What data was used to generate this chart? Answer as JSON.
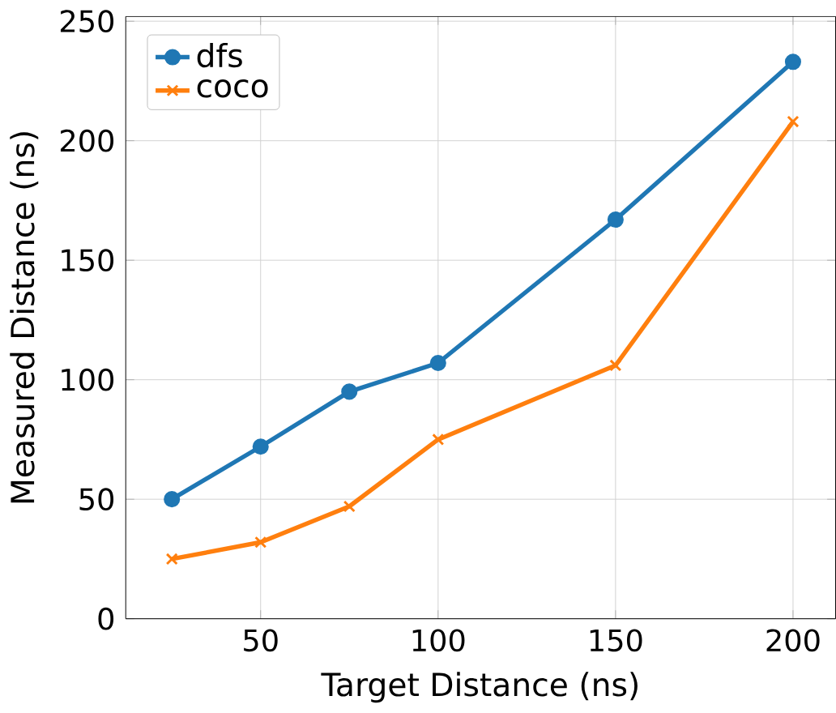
{
  "chart_data": {
    "type": "line",
    "xlabel": "Target Distance (ns)",
    "ylabel": "Measured Distance (ns)",
    "x": [
      25,
      50,
      75,
      100,
      150,
      200
    ],
    "series": [
      {
        "name": "dfs",
        "color": "#1f77b4",
        "marker": "circle",
        "values": [
          50,
          72,
          95,
          107,
          167,
          233
        ]
      },
      {
        "name": "coco",
        "color": "#ff7f0e",
        "marker": "cross",
        "values": [
          25,
          32,
          47,
          75,
          106,
          208
        ]
      }
    ],
    "xlim": [
      12,
      212
    ],
    "ylim": [
      0,
      252
    ],
    "xticks": [
      50,
      100,
      150,
      200
    ],
    "yticks": [
      0,
      50,
      100,
      150,
      200,
      250
    ],
    "grid": true,
    "legend": "top left"
  }
}
